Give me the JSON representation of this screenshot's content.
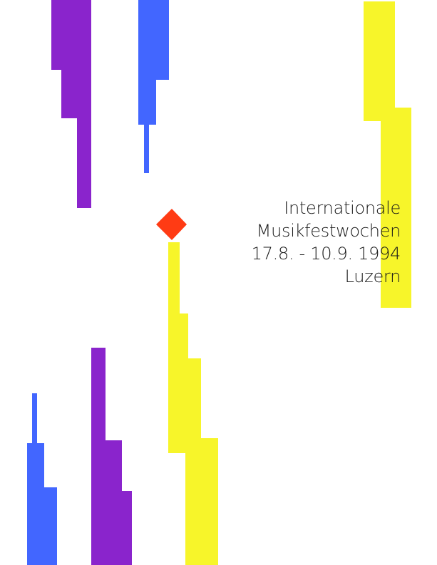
{
  "poster": {
    "title_line_1": "Internationale",
    "title_line_2": "Musikfestwochen",
    "dates": "17.8. - 10.9. 1994",
    "city": "Luzern"
  },
  "palette": {
    "purple": "#8a24cc",
    "blue": "#4266ff",
    "yellow": "#f7f52a",
    "orange_red": "#ff3b14",
    "text": "#1a1a1a",
    "background": "#ffffff"
  },
  "shapes": [
    {
      "name": "purple-bar-top",
      "color": "purple"
    },
    {
      "name": "blue-bar-top",
      "color": "blue"
    },
    {
      "name": "yellow-bar-right",
      "color": "yellow"
    },
    {
      "name": "orange-diamond",
      "color": "orange_red"
    },
    {
      "name": "yellow-bar-center",
      "color": "yellow"
    },
    {
      "name": "blue-bar-bottom",
      "color": "blue"
    },
    {
      "name": "purple-bar-bottom",
      "color": "purple"
    }
  ]
}
